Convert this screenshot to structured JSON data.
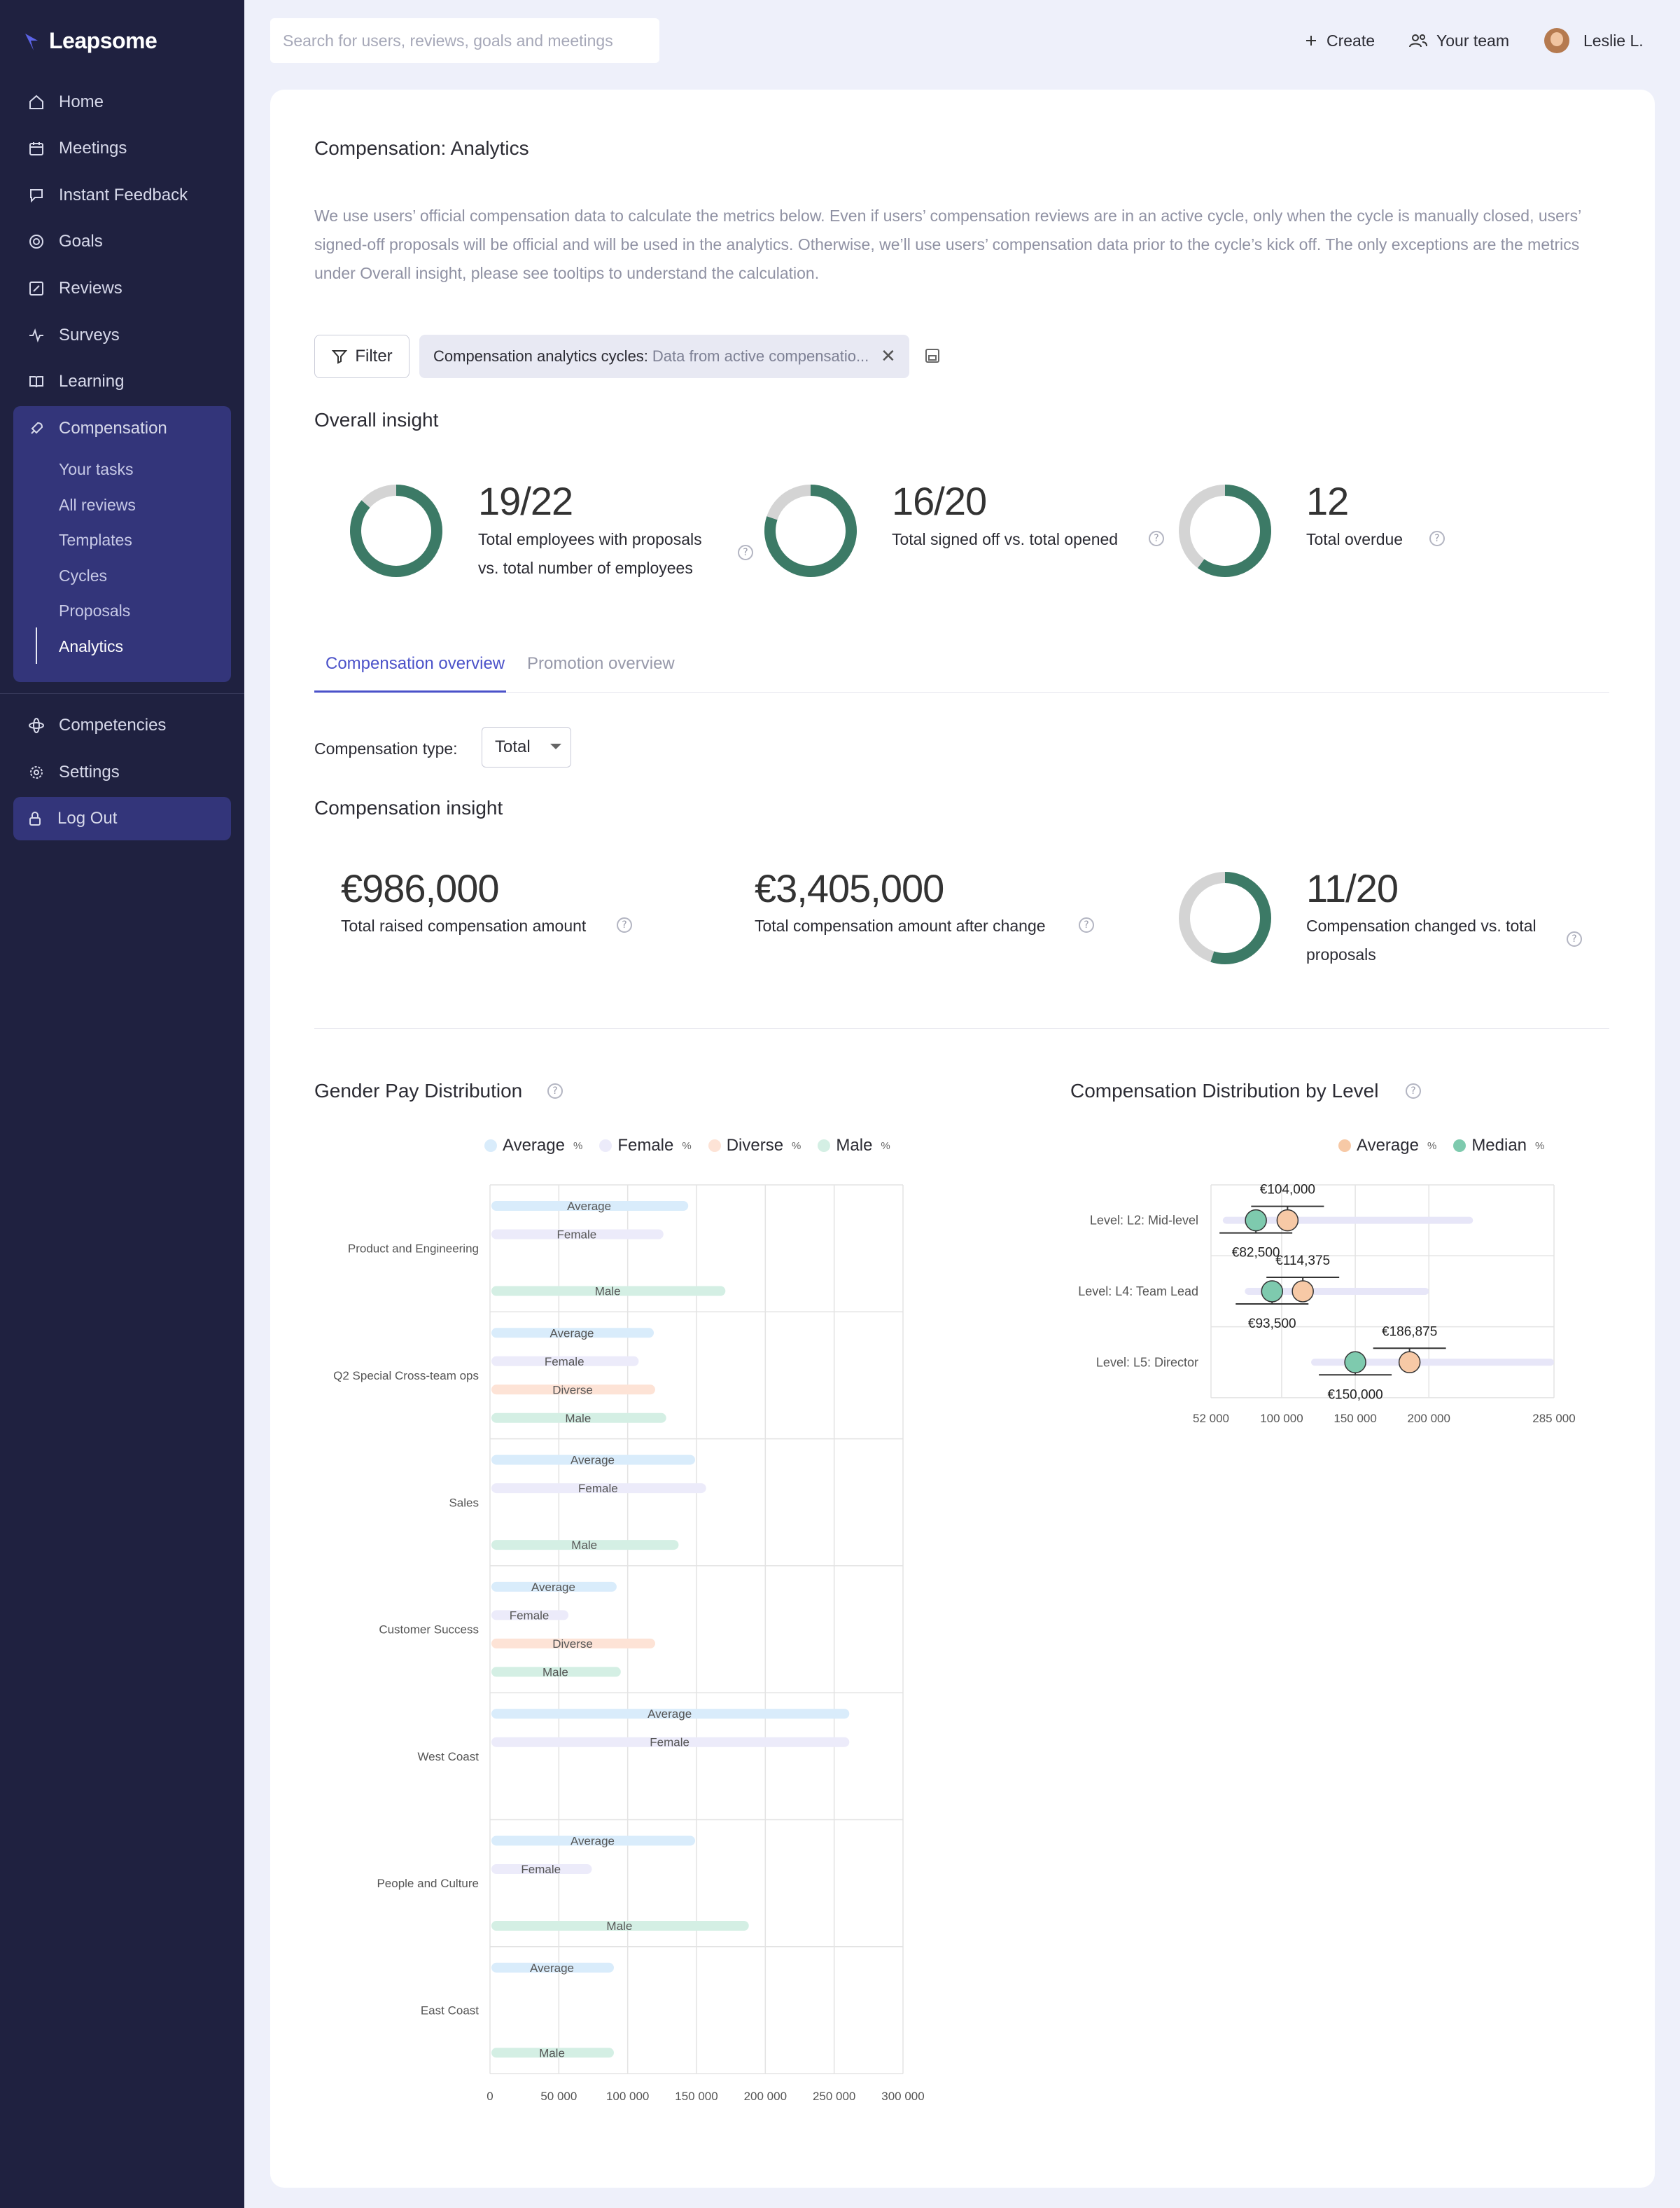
{
  "app": {
    "name": "Leapsome"
  },
  "sidebar": {
    "items": [
      {
        "label": "Home",
        "icon": "home-icon"
      },
      {
        "label": "Meetings",
        "icon": "calendar-icon"
      },
      {
        "label": "Instant Feedback",
        "icon": "feedback-icon"
      },
      {
        "label": "Goals",
        "icon": "target-icon"
      },
      {
        "label": "Reviews",
        "icon": "edit-icon"
      },
      {
        "label": "Surveys",
        "icon": "pulse-icon"
      },
      {
        "label": "Learning",
        "icon": "book-icon"
      },
      {
        "label": "Compensation",
        "icon": "rocket-icon"
      }
    ],
    "compensation_sub": [
      "Your tasks",
      "All reviews",
      "Templates",
      "Cycles",
      "Proposals",
      "Analytics"
    ],
    "bottom_items": [
      {
        "label": "Competencies",
        "icon": "atom-icon"
      },
      {
        "label": "Settings",
        "icon": "gear-icon"
      }
    ],
    "logout": "Log Out"
  },
  "topbar": {
    "search_placeholder": "Search for users, reviews, goals and meetings",
    "create": "Create",
    "your_team": "Your team",
    "user": "Leslie L."
  },
  "page": {
    "title": "Compensation: Analytics",
    "description": "We use users’ official compensation data to calculate the metrics below. Even if users’ compensation reviews are in an active cycle, only when the cycle is manually closed, users’ signed-off proposals will be official and will be used in the analytics. Otherwise, we’ll use users’ compensation data prior to the cycle’s kick off. The only exceptions are the metrics under Overall insight, please see tooltips to understand the calculation.",
    "filter_label": "Filter",
    "filter_chip_key": "Compensation analytics cycles:",
    "filter_chip_value": "Data from active compensatio..."
  },
  "overall_insight": {
    "title": "Overall insight",
    "metrics": [
      {
        "value": "19/22",
        "label_line1": "Total employees with proposals",
        "label_line2": "vs. total number of employees",
        "ratio": 0.864
      },
      {
        "value": "16/20",
        "label_line1": "Total signed off vs. total opened",
        "label_line2": "",
        "ratio": 0.8
      },
      {
        "value": "12",
        "label_line1": "Total overdue",
        "label_line2": "",
        "ratio": 0.6
      }
    ]
  },
  "tabs": [
    {
      "label": "Compensation overview",
      "active": true
    },
    {
      "label": "Promotion overview",
      "active": false
    }
  ],
  "compensation_type": {
    "label": "Compensation type:",
    "value": "Total"
  },
  "compensation_insight": {
    "title": "Compensation insight",
    "raised": {
      "value": "€986,000",
      "label": "Total raised compensation amount"
    },
    "after": {
      "value": "€3,405,000",
      "label": "Total compensation amount after change"
    },
    "changed": {
      "value": "11/20",
      "label_line1": "Compensation changed vs. total",
      "label_line2": "proposals",
      "ratio": 0.55
    }
  },
  "colors": {
    "sidebar_bg": "#1f2140",
    "accent": "#4b52c9",
    "donut_fill": "#3c7a66",
    "donut_track": "#d4d4d4",
    "average": "#d9ecfb",
    "female": "#ecebfa",
    "diverse": "#fde3d6",
    "male": "#d4efe4",
    "comp_average": "#f7c9a6",
    "comp_median": "#7ecaae"
  },
  "gender_chart": {
    "title": "Gender Pay Distribution",
    "legend": [
      {
        "name": "Average",
        "color": "#d9ecfb"
      },
      {
        "name": "Female",
        "color": "#ecebfa"
      },
      {
        "name": "Diverse",
        "color": "#fde3d6"
      },
      {
        "name": "Male",
        "color": "#d4efe4"
      }
    ],
    "pct_symbol": "%"
  },
  "level_chart": {
    "title": "Compensation Distribution by Level",
    "legend": [
      {
        "name": "Average",
        "color": "#f7c9a6"
      },
      {
        "name": "Median",
        "color": "#7ecaae"
      }
    ],
    "pct_symbol": "%"
  },
  "chart_data": [
    {
      "type": "bar",
      "title": "Gender Pay Distribution",
      "orientation": "horizontal",
      "categories": [
        "Product and Engineering",
        "Q2 Special Cross-team ops",
        "Sales",
        "Customer Success",
        "West Coast",
        "People and Culture",
        "East Coast"
      ],
      "series": [
        {
          "name": "Average",
          "values": [
            144000,
            119000,
            149000,
            92000,
            261000,
            149000,
            90000
          ]
        },
        {
          "name": "Female",
          "values": [
            126000,
            108000,
            157000,
            57000,
            261000,
            74000,
            null
          ]
        },
        {
          "name": "Diverse",
          "values": [
            null,
            120000,
            null,
            120000,
            null,
            null,
            null
          ]
        },
        {
          "name": "Male",
          "values": [
            171000,
            128000,
            137000,
            95000,
            null,
            188000,
            90000
          ]
        }
      ],
      "xlim": [
        0,
        300000
      ],
      "xticks": [
        "0",
        "50 000",
        "100 000",
        "150 000",
        "200 000",
        "250 000",
        "300 000"
      ],
      "grid": true
    },
    {
      "type": "scatter",
      "title": "Compensation Distribution by Level",
      "categories": [
        "Level: L2: Mid-level",
        "Level: L4: Team Lead",
        "Level: L5: Director"
      ],
      "series": [
        {
          "name": "Average",
          "values": [
            104000,
            114375,
            186875
          ],
          "labels": [
            "€104,000",
            "€114,375",
            "€186,875"
          ]
        },
        {
          "name": "Median",
          "values": [
            82500,
            93500,
            150000
          ],
          "labels": [
            "€82,500",
            "€93,500",
            "€150,000"
          ]
        }
      ],
      "ranges": [
        [
          60000,
          230000
        ],
        [
          75000,
          200000
        ],
        [
          120000,
          285000
        ]
      ],
      "xlim": [
        52000,
        285000
      ],
      "xticks": [
        {
          "label": "52 000",
          "value": 52000
        },
        {
          "label": "100 000",
          "value": 100000
        },
        {
          "label": "150 000",
          "value": 150000
        },
        {
          "label": "200 000",
          "value": 200000
        },
        {
          "label": "285 000",
          "value": 285000
        }
      ],
      "grid": true
    }
  ]
}
